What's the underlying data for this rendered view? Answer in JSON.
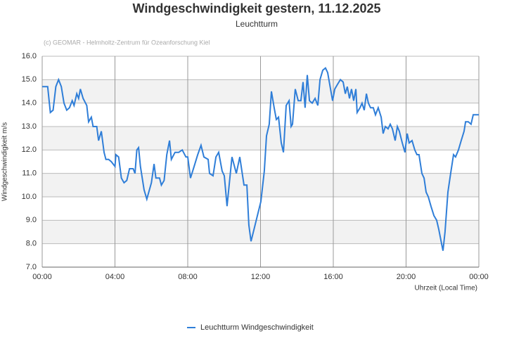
{
  "chart_data": {
    "type": "line",
    "title": "Windgeschwindigkeit gestern, 11.12.2025",
    "subtitle": "Leuchtturm",
    "credit": "(c) GEOMAR - Helmholtz-Zentrum für Ozeanforschung Kiel",
    "y_label": "Windgeschwindigkeit m/s",
    "x_label": "Uhrzeit (Local Time)",
    "xlim": [
      0,
      24
    ],
    "ylim": [
      7,
      16
    ],
    "xticks": [
      {
        "value": 0,
        "label": "00:00"
      },
      {
        "value": 4,
        "label": "04:00"
      },
      {
        "value": 8,
        "label": "08:00"
      },
      {
        "value": 12,
        "label": "12:00"
      },
      {
        "value": 16,
        "label": "16:00"
      },
      {
        "value": 20,
        "label": "20:00"
      },
      {
        "value": 24,
        "label": "00:00"
      }
    ],
    "yticks": [
      {
        "value": 7,
        "label": "7.0"
      },
      {
        "value": 8,
        "label": "8.0"
      },
      {
        "value": 9,
        "label": "9.0"
      },
      {
        "value": 10,
        "label": "10.0"
      },
      {
        "value": 11,
        "label": "11.0"
      },
      {
        "value": 12,
        "label": "12.0"
      },
      {
        "value": 13,
        "label": "13.0"
      },
      {
        "value": 14,
        "label": "14.0"
      },
      {
        "value": 15,
        "label": "15.0"
      },
      {
        "value": 16,
        "label": "16.0"
      }
    ],
    "grid": true,
    "x": [
      0,
      0.3,
      0.45,
      0.6,
      0.75,
      0.9,
      1.05,
      1.2,
      1.35,
      1.5,
      1.65,
      1.75,
      1.9,
      2.0,
      2.1,
      2.25,
      2.45,
      2.55,
      2.7,
      2.8,
      3.0,
      3.1,
      3.25,
      3.4,
      3.5,
      3.65,
      3.8,
      4.0,
      4.05,
      4.2,
      4.35,
      4.5,
      4.65,
      4.8,
      5.0,
      5.1,
      5.2,
      5.3,
      5.4,
      5.6,
      5.75,
      6.0,
      6.15,
      6.25,
      6.45,
      6.55,
      6.7,
      6.85,
      7.0,
      7.1,
      7.3,
      7.5,
      7.7,
      7.9,
      8.0,
      8.15,
      8.35,
      8.55,
      8.73,
      8.89,
      9.12,
      9.2,
      9.39,
      9.55,
      9.7,
      9.89,
      10.01,
      10.16,
      10.43,
      10.67,
      10.86,
      11.09,
      11.25,
      11.36,
      11.48,
      11.67,
      11.86,
      12.02,
      12.21,
      12.33,
      12.48,
      12.6,
      12.75,
      12.87,
      12.99,
      13.14,
      13.26,
      13.41,
      13.57,
      13.68,
      13.76,
      13.91,
      14.07,
      14.22,
      14.34,
      14.45,
      14.57,
      14.69,
      14.84,
      15.0,
      15.15,
      15.27,
      15.42,
      15.57,
      15.69,
      15.85,
      15.96,
      16.08,
      16.23,
      16.39,
      16.54,
      16.66,
      16.77,
      16.89,
      17.0,
      17.12,
      17.24,
      17.31,
      17.47,
      17.58,
      17.7,
      17.82,
      17.93,
      18.05,
      18.2,
      18.32,
      18.47,
      18.63,
      18.74,
      18.86,
      19.01,
      19.13,
      19.25,
      19.4,
      19.52,
      19.63,
      19.79,
      19.94,
      20.06,
      20.17,
      20.33,
      20.48,
      20.6,
      20.71,
      20.87,
      20.99,
      21.1,
      21.22,
      21.37,
      21.53,
      21.68,
      21.8,
      21.95,
      22.03,
      22.14,
      22.3,
      22.45,
      22.61,
      22.72,
      22.88,
      23.03,
      23.19,
      23.27,
      23.42,
      23.57,
      23.69,
      23.85,
      24.0
    ],
    "series": [
      {
        "name": "Leuchtturm Windgeschwindigkeit",
        "color": "#2f7ed8",
        "values": [
          14.7,
          14.7,
          13.6,
          13.7,
          14.7,
          15.0,
          14.7,
          14.0,
          13.7,
          13.8,
          14.1,
          13.9,
          14.4,
          14.2,
          14.6,
          14.2,
          13.9,
          13.2,
          13.4,
          13.0,
          13.0,
          12.4,
          12.8,
          11.9,
          11.6,
          11.6,
          11.5,
          11.3,
          11.8,
          11.7,
          10.8,
          10.6,
          10.7,
          11.2,
          11.2,
          11.0,
          12.0,
          12.1,
          11.3,
          10.3,
          9.9,
          10.6,
          11.4,
          10.8,
          10.8,
          10.5,
          10.7,
          11.8,
          12.4,
          11.6,
          11.9,
          11.9,
          12.0,
          11.7,
          11.7,
          10.8,
          11.3,
          11.8,
          12.2,
          11.7,
          11.6,
          11.0,
          10.9,
          11.7,
          11.9,
          11.1,
          10.9,
          9.6,
          11.7,
          11.0,
          11.7,
          10.5,
          10.5,
          8.8,
          8.1,
          8.7,
          9.3,
          9.8,
          11.1,
          12.6,
          13.1,
          14.5,
          13.8,
          13.3,
          13.4,
          12.3,
          11.9,
          13.9,
          14.1,
          13.0,
          13.1,
          14.6,
          14.1,
          14.1,
          14.9,
          13.8,
          15.2,
          14.1,
          14.0,
          14.2,
          13.9,
          15.0,
          15.4,
          15.5,
          15.3,
          14.6,
          14.1,
          14.6,
          14.8,
          15.0,
          14.9,
          14.4,
          14.7,
          14.2,
          14.6,
          14.1,
          14.6,
          13.6,
          13.8,
          14.0,
          13.7,
          14.4,
          14.0,
          13.8,
          13.8,
          13.5,
          13.8,
          13.4,
          12.7,
          13.0,
          12.9,
          13.1,
          12.9,
          12.4,
          13.0,
          12.8,
          12.3,
          11.9,
          12.7,
          12.3,
          12.4,
          12.0,
          11.8,
          11.8,
          11.0,
          10.8,
          10.2,
          10.0,
          9.6,
          9.2,
          9.0,
          8.6,
          8.0,
          7.7,
          8.5,
          10.2,
          11.0,
          11.8,
          11.7,
          12.0,
          12.4,
          12.8,
          13.2,
          13.2,
          13.1,
          13.5,
          13.5,
          13.5
        ]
      }
    ]
  }
}
